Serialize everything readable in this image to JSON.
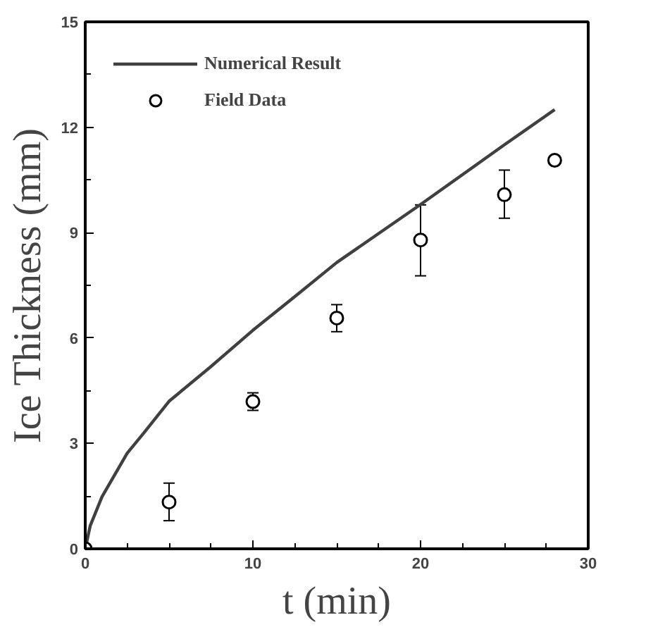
{
  "chart_data": {
    "type": "line",
    "xlabel": "t (min)",
    "ylabel": "Ice Thickness (mm)",
    "xlim": [
      0,
      30
    ],
    "ylim": [
      0,
      15
    ],
    "xticks": [
      0,
      10,
      20,
      30
    ],
    "yticks": [
      0,
      3,
      6,
      9,
      12,
      15
    ],
    "grid": false,
    "legend": "top left",
    "series": [
      {
        "name": "Numerical Result",
        "color": "#404040",
        "marker": "none",
        "line_style": "solid",
        "x": [
          0,
          0.3,
          1,
          2.5,
          3.5,
          5,
          7.5,
          10,
          12.5,
          15,
          20,
          25,
          28
        ],
        "values": [
          0,
          0.66,
          1.48,
          2.72,
          3.3,
          4.2,
          5.19,
          6.22,
          7.18,
          8.15,
          9.8,
          11.5,
          12.5
        ]
      },
      {
        "name": "Field Data",
        "type": "scatter",
        "color": "#000000",
        "marker": "circle",
        "x": [
          0,
          5,
          10,
          15,
          20,
          25,
          28
        ],
        "values": [
          0,
          1.33,
          4.19,
          6.57,
          8.79,
          10.08,
          11.06
        ],
        "errors": [
          null,
          [
            0.8,
            1.87
          ],
          [
            3.94,
            4.44
          ],
          [
            6.18,
            6.95
          ],
          [
            7.77,
            9.79
          ],
          [
            9.41,
            10.78
          ],
          [
            10.96,
            11.14
          ]
        ]
      }
    ]
  }
}
